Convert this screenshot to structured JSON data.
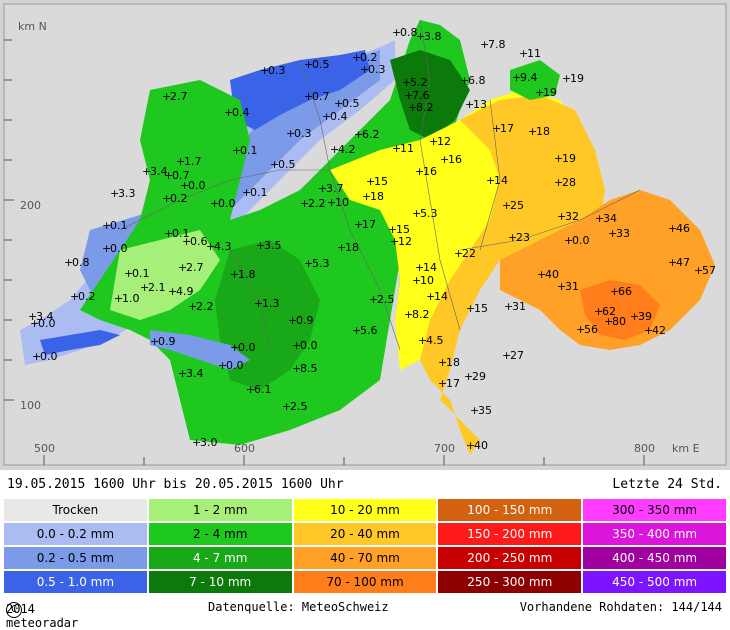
{
  "axis": {
    "north_unit": "km N",
    "east_unit": "km E",
    "y_ticks": [
      "200",
      "100"
    ],
    "x_ticks": [
      "500",
      "600",
      "700",
      "800"
    ]
  },
  "stations": [
    {
      "label": "0.8"
    },
    {
      "label": "3.8"
    },
    {
      "label": "7.8"
    },
    {
      "label": "11"
    },
    {
      "label": "0.2"
    },
    {
      "label": "0.3"
    },
    {
      "label": "0.3"
    },
    {
      "label": "0.5"
    },
    {
      "label": "9.4"
    },
    {
      "label": "19"
    },
    {
      "label": "6.8"
    },
    {
      "label": "5.2"
    },
    {
      "label": "2.7"
    },
    {
      "label": "0.7"
    },
    {
      "label": "7.6"
    },
    {
      "label": "19"
    },
    {
      "label": "0.4"
    },
    {
      "label": "0.5"
    },
    {
      "label": "8.2"
    },
    {
      "label": "13"
    },
    {
      "label": "0.4"
    },
    {
      "label": "17"
    },
    {
      "label": "18"
    },
    {
      "label": "0.3"
    },
    {
      "label": "6.2"
    },
    {
      "label": "12"
    },
    {
      "label": "0.1"
    },
    {
      "label": "4.2"
    },
    {
      "label": "11"
    },
    {
      "label": "1.7"
    },
    {
      "label": "0.5"
    },
    {
      "label": "16"
    },
    {
      "label": "19"
    },
    {
      "label": "3.4"
    },
    {
      "label": "0.7"
    },
    {
      "label": "16"
    },
    {
      "label": "0.0"
    },
    {
      "label": "15"
    },
    {
      "label": "28"
    },
    {
      "label": "3.3"
    },
    {
      "label": "0.2"
    },
    {
      "label": "0.1"
    },
    {
      "label": "3.7"
    },
    {
      "label": "14"
    },
    {
      "label": "0.0"
    },
    {
      "label": "2.2"
    },
    {
      "label": "10"
    },
    {
      "label": "18"
    },
    {
      "label": "25"
    },
    {
      "label": "0.1"
    },
    {
      "label": "17"
    },
    {
      "label": "5.3"
    },
    {
      "label": "32"
    },
    {
      "label": "34"
    },
    {
      "label": "0.1"
    },
    {
      "label": "15"
    },
    {
      "label": "33"
    },
    {
      "label": "46"
    },
    {
      "label": "0.6"
    },
    {
      "label": "4.3"
    },
    {
      "label": "3.5"
    },
    {
      "label": "23"
    },
    {
      "label": "0.0"
    },
    {
      "label": "0.0"
    },
    {
      "label": "18"
    },
    {
      "label": "12"
    },
    {
      "label": "22"
    },
    {
      "label": "0.8"
    },
    {
      "label": "2.7"
    },
    {
      "label": "5.3"
    },
    {
      "label": "14"
    },
    {
      "label": "47"
    },
    {
      "label": "57"
    },
    {
      "label": "0.1"
    },
    {
      "label": "1.8"
    },
    {
      "label": "10"
    },
    {
      "label": "40"
    },
    {
      "label": "2.1"
    },
    {
      "label": "4.9"
    },
    {
      "label": "31"
    },
    {
      "label": "0.2"
    },
    {
      "label": "1.0"
    },
    {
      "label": "2.5"
    },
    {
      "label": "14"
    },
    {
      "label": "66"
    },
    {
      "label": "1.3"
    },
    {
      "label": "15"
    },
    {
      "label": "31"
    },
    {
      "label": "2.2"
    },
    {
      "label": "62"
    },
    {
      "label": "3.4"
    },
    {
      "label": "0.0"
    },
    {
      "label": "0.9"
    },
    {
      "label": "8.2"
    },
    {
      "label": "39"
    },
    {
      "label": "80"
    },
    {
      "label": "56"
    },
    {
      "label": "42"
    },
    {
      "label": "5.6"
    },
    {
      "label": "0.9"
    },
    {
      "label": "0.0"
    },
    {
      "label": "0.0"
    },
    {
      "label": "4.5"
    },
    {
      "label": "8.5"
    },
    {
      "label": "27"
    },
    {
      "label": "0.0"
    },
    {
      "label": "18"
    },
    {
      "label": "3.4"
    },
    {
      "label": "0.0"
    },
    {
      "label": "6.1"
    },
    {
      "label": "17"
    },
    {
      "label": "29"
    },
    {
      "label": "2.5"
    },
    {
      "label": "35"
    },
    {
      "label": "3.0"
    },
    {
      "label": "40"
    }
  ],
  "period": {
    "text": "19.05.2015 1600 Uhr  bis  20.05.2015 1600 Uhr",
    "window": "Letzte 24 Std."
  },
  "legend": [
    {
      "label": "Trocken",
      "color": "#e8e8e8"
    },
    {
      "label": "0.0 - 0.2 mm",
      "color": "#aabcf2"
    },
    {
      "label": "0.2 - 0.5 mm",
      "color": "#7b9ae8"
    },
    {
      "label": "0.5 - 1.0 mm",
      "color": "#3a63e8"
    },
    {
      "label": "1 - 2 mm",
      "color": "#a6f07a"
    },
    {
      "label": "2 - 4 mm",
      "color": "#1fc81f"
    },
    {
      "label": "4 - 7 mm",
      "color": "#18a818"
    },
    {
      "label": "7 - 10 mm",
      "color": "#0b7a0b"
    },
    {
      "label": "10 - 20 mm",
      "color": "#ffff1a"
    },
    {
      "label": "20 - 40 mm",
      "color": "#ffc826"
    },
    {
      "label": "40 - 70 mm",
      "color": "#ffa126"
    },
    {
      "label": "70 - 100 mm",
      "color": "#ff7d1a"
    },
    {
      "label": "100 - 150 mm",
      "color": "#d2620f"
    },
    {
      "label": "150 - 200 mm",
      "color": "#ff1a1a"
    },
    {
      "label": "200 - 250 mm",
      "color": "#c80000"
    },
    {
      "label": "250 - 300 mm",
      "color": "#8c0000"
    },
    {
      "label": "300 - 350 mm",
      "color": "#ff3cff"
    },
    {
      "label": "350 - 400 mm",
      "color": "#dc14dc"
    },
    {
      "label": "400 - 450 mm",
      "color": "#a000a0"
    },
    {
      "label": "450 - 500 mm",
      "color": "#7d14ff"
    }
  ],
  "footer": {
    "copyright": "2014 meteoradar",
    "source": "Datenquelle: MeteoSchweiz",
    "raw": "Vorhandene Rohdaten: 144/144"
  }
}
